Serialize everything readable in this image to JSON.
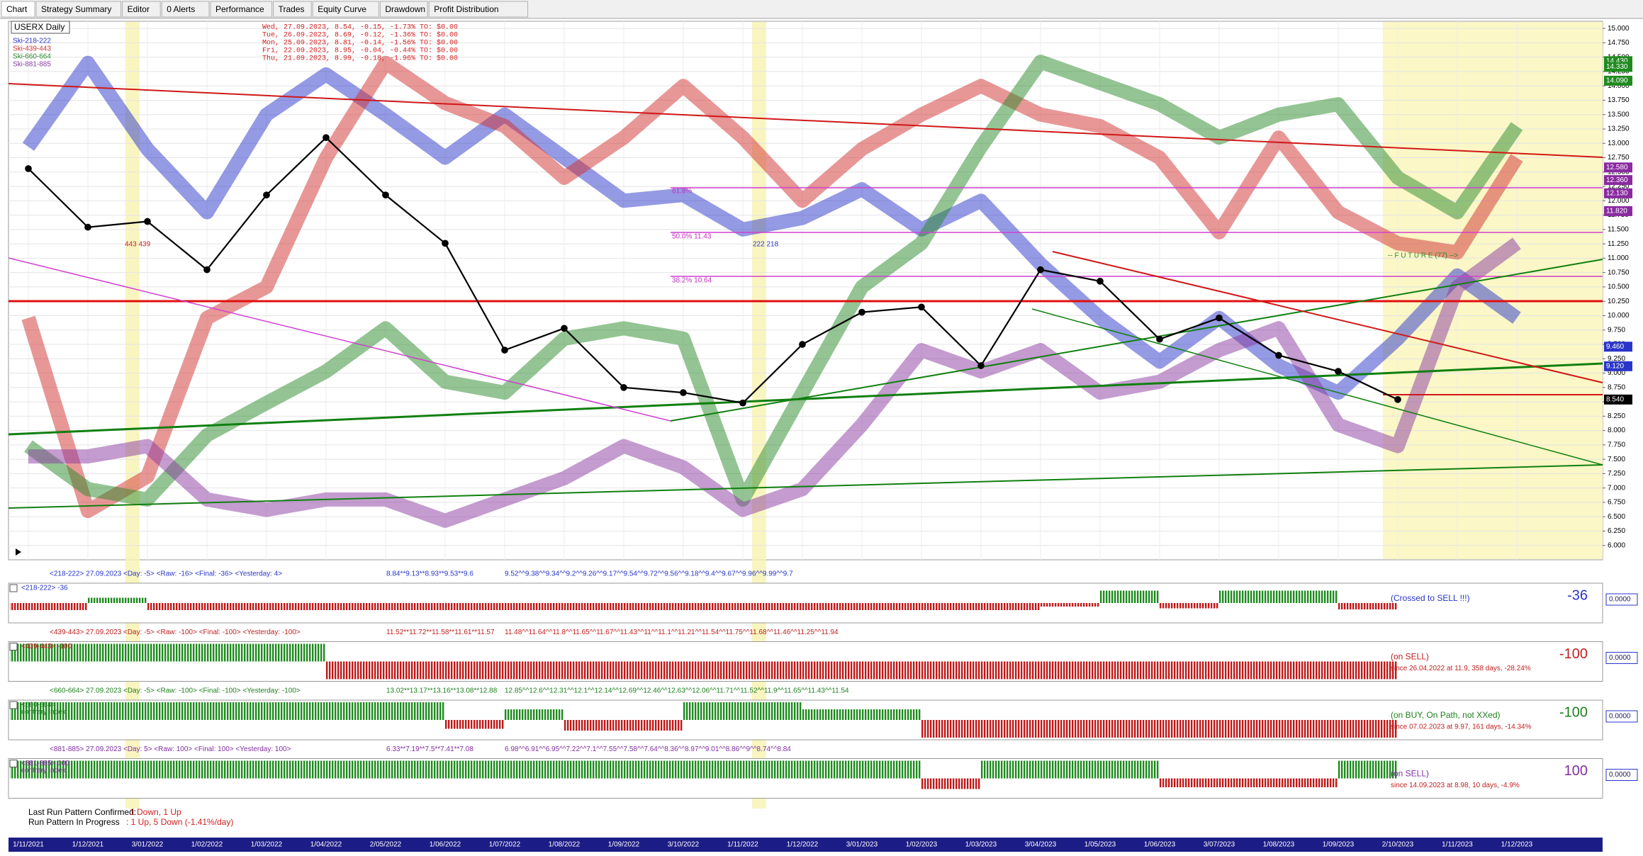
{
  "tabs": [
    "Chart",
    "Strategy Summary",
    "Editor",
    "0 Alerts",
    "Performance",
    "Trades",
    "Equity Curve",
    "Drawdown",
    "Profit Distribution"
  ],
  "chart_data": {
    "type": "line",
    "title": "USERX Daily",
    "x": [
      "1/11/2021",
      "1/12/2021",
      "3/01/2022",
      "1/02/2022",
      "1/03/2022",
      "1/04/2022",
      "2/05/2022",
      "1/06/2022",
      "1/07/2022",
      "1/08/2022",
      "1/09/2022",
      "3/10/2022",
      "1/11/2022",
      "1/12/2022",
      "3/01/2023",
      "1/02/2023",
      "1/03/2023",
      "3/04/2023",
      "1/05/2023",
      "1/06/2023",
      "3/07/2023",
      "1/08/2023",
      "1/09/2023",
      "2/10/2023",
      "1/11/2023",
      "1/12/2023"
    ],
    "ylim": [
      5.75,
      15.125
    ],
    "yticks": [
      {
        "value": 6,
        "label": "6.000"
      },
      {
        "value": 6.25,
        "label": "6.250"
      },
      {
        "value": 6.5,
        "label": "6.500"
      },
      {
        "value": 6.75,
        "label": "6.750"
      },
      {
        "value": 7,
        "label": "7.000"
      },
      {
        "value": 7.25,
        "label": "7.250"
      },
      {
        "value": 7.5,
        "label": "7.500"
      },
      {
        "value": 7.75,
        "label": "7.750"
      },
      {
        "value": 8,
        "label": "8.000"
      },
      {
        "value": 8.25,
        "label": "8.250"
      },
      {
        "value": 8.5,
        "label": "8.500"
      },
      {
        "value": 8.75,
        "label": "8.750"
      },
      {
        "value": 9,
        "label": "9.000"
      },
      {
        "value": 9.25,
        "label": "9.250"
      },
      {
        "value": 9.5,
        "label": "9.500"
      },
      {
        "value": 9.75,
        "label": "9.750"
      },
      {
        "value": 10,
        "label": "10.000"
      },
      {
        "value": 10.25,
        "label": "10.250"
      },
      {
        "value": 10.5,
        "label": "10.500"
      },
      {
        "value": 10.75,
        "label": "10.750"
      },
      {
        "value": 11,
        "label": "11.000"
      },
      {
        "value": 11.25,
        "label": "11.250"
      },
      {
        "value": 11.5,
        "label": "11.500"
      },
      {
        "value": 11.75,
        "label": "11.750"
      },
      {
        "value": 12,
        "label": "12.000"
      },
      {
        "value": 12.25,
        "label": "12.250"
      },
      {
        "value": 12.5,
        "label": "12.500"
      },
      {
        "value": 12.75,
        "label": "12.750"
      },
      {
        "value": 13,
        "label": "13.000"
      },
      {
        "value": 13.25,
        "label": "13.250"
      },
      {
        "value": 13.5,
        "label": "13.500"
      },
      {
        "value": 13.75,
        "label": "13.750"
      },
      {
        "value": 14,
        "label": "14.000"
      },
      {
        "value": 14.25,
        "label": "14.250"
      },
      {
        "value": 14.5,
        "label": "14.500"
      },
      {
        "value": 14.75,
        "label": "14.750"
      },
      {
        "value": 15,
        "label": "15.000"
      }
    ],
    "grid": true,
    "series": [
      {
        "name": "Ski-218-222",
        "color": "#2a36c8",
        "values": [
          12.94,
          14.4,
          12.9,
          11.8,
          13.5,
          14.2,
          13.5,
          12.75,
          13.5,
          12.75,
          12.0,
          12.1,
          11.5,
          11.7,
          12.2,
          11.5,
          12.0,
          10.9,
          9.96,
          9.2,
          9.96,
          9.13,
          8.66,
          9.6,
          10.7,
          9.96
        ]
      },
      {
        "name": "Ski-439-443",
        "color": "#d23030",
        "values": [
          9.96,
          6.6,
          7.2,
          9.96,
          10.5,
          12.75,
          14.4,
          13.7,
          13.3,
          12.4,
          13.1,
          14.0,
          13.1,
          12.0,
          12.9,
          13.5,
          14.0,
          13.5,
          13.3,
          12.75,
          11.45,
          13.1,
          11.8,
          11.26,
          11.1,
          12.75
        ]
      },
      {
        "name": "Ski-660-664",
        "color": "#2a8a2a",
        "values": [
          7.73,
          6.98,
          6.8,
          7.92,
          8.48,
          9.03,
          9.78,
          8.85,
          8.66,
          9.6,
          9.78,
          9.6,
          6.8,
          8.66,
          10.5,
          11.26,
          12.94,
          14.42,
          14.05,
          13.68,
          13.1,
          13.5,
          13.68,
          12.4,
          11.8,
          13.3
        ]
      },
      {
        "name": "Ski-881-885",
        "color": "#8a3aa0",
        "values": [
          7.55,
          7.55,
          7.73,
          6.8,
          6.62,
          6.8,
          6.8,
          6.43,
          6.8,
          7.17,
          7.73,
          7.36,
          6.62,
          6.98,
          8.1,
          9.4,
          9.03,
          9.4,
          8.66,
          8.85,
          9.4,
          9.78,
          8.1,
          7.73,
          10.5,
          11.26
        ]
      },
      {
        "color": "#000000",
        "values": [
          12.56,
          11.54,
          11.64,
          10.8,
          12.1,
          13.1,
          12.1,
          11.26,
          9.4,
          9.78,
          8.75,
          8.66,
          8.48,
          9.5,
          10.06,
          10.15,
          9.13,
          10.8,
          10.6,
          9.59,
          9.96,
          9.31,
          9.03,
          8.54,
          null,
          null
        ]
      }
    ],
    "info_lines": [
      "Wed, 27.09.2023, 8.54, -0.15, -1.73%    TO: $0.00",
      "Tue, 26.09.2023, 8.69, -0.12, -1.36%    TO: $0.00",
      "Mon, 25.09.2023, 8.81, -0.14, -1.56%    TO: $0.00",
      "Fri, 22.09.2023, 8.95, -0.04, -0.44%    TO: $0.00",
      "Thu, 21.09.2023, 8.99, -0.18, -1.96%    TO: $0.00"
    ],
    "info_color": "#d02020",
    "annotations": [
      {
        "text": "443 439",
        "color": "#d02020"
      },
      {
        "text": "222 218",
        "color": "#2a36c8"
      },
      {
        "text": "61.8%",
        "color": "#c030c0"
      },
      {
        "text": "50.0% 11.43",
        "color": "#c030c0"
      },
      {
        "text": "38.2% 10.64",
        "color": "#c030c0"
      },
      {
        "text": "-- F U T U R E (77) -->",
        "color": "#2a8a2a"
      }
    ],
    "price_labels": [
      {
        "value": 14.43,
        "label": "14.430",
        "color": "#1f8a1f"
      },
      {
        "value": 14.33,
        "label": "14.330",
        "color": "#1f8a1f"
      },
      {
        "value": 14.09,
        "label": "14.090",
        "color": "#1f8a1f"
      },
      {
        "value": 12.58,
        "label": "12.580",
        "color": "#8a2aa0"
      },
      {
        "value": 12.36,
        "label": "12.360",
        "color": "#8a2aa0"
      },
      {
        "value": 12.13,
        "label": "12.130",
        "color": "#8a2aa0"
      },
      {
        "value": 11.82,
        "label": "11.820",
        "color": "#8a2aa0"
      },
      {
        "value": 9.46,
        "label": "9.460",
        "color": "#2a36c8"
      },
      {
        "value": 9.12,
        "label": "9.120",
        "color": "#2a36c8"
      },
      {
        "value": 8.54,
        "label": "8.540",
        "color": "#000000"
      }
    ]
  },
  "panels": [
    {
      "header": "<218-222>  27.09.2023  <Day: -5>  <Raw: -16>  <Final: -36>  <Yesterday: 4>",
      "values_recent": "8.84**9.13**8.93**9.53**9.6",
      "values_history": "9.52^^9.38^^9.34^^9.2^^9.26^^9.17^^9.54^^9.72^^9.56^^9.18^^9.4^^9.67^^9.96^^9.99^^9.7",
      "tag": "<218-222>  -36",
      "status": "(Crossed to SELL !!!)",
      "score": "-36",
      "readout": "0.0000",
      "color": "#2a36c8",
      "values": [
        -40,
        -40,
        30,
        -40,
        -40,
        -40,
        -40,
        -40,
        -40,
        -40,
        -40,
        -40,
        -40,
        -40,
        -40,
        -40,
        -40,
        -40,
        -20,
        70,
        -30,
        70,
        70,
        -36,
        null,
        null
      ]
    },
    {
      "header": "<439-443>  27.09.2023  <Day: -5>  <Raw: -100>  <Final: -100>  <Yesterday: -100>",
      "values_recent": "11.52**11.72**11.58**11.61**11.57",
      "values_history": "11.48^^11.64^^11.8^^11.65^^11.67^^11.43^^11^^11.1^^11.21^^11.54^^11.75^^11.68^^11.46^^11.25^^11.94",
      "tag": "<439-443>  -100",
      "status": "(on SELL)",
      "since": "since 26.04.2022 at 11.9, 358 days, -28.24%",
      "score": "-100",
      "readout": "0.0000",
      "color": "#c02020",
      "values": [
        100,
        100,
        100,
        100,
        100,
        100,
        -100,
        -100,
        -100,
        -100,
        -100,
        -100,
        -100,
        -100,
        -100,
        -100,
        -100,
        -100,
        -100,
        -100,
        -100,
        -100,
        -100,
        -100,
        null,
        null
      ]
    },
    {
      "header": "<660-664>  27.09.2023  <Day: -5>  <Raw: -100>  <Final: -100>  <Yesterday: -100>",
      "values_recent": "13.02**13.17**13.16**13.08**12.88",
      "values_history": "12.85^^12.6^^12.31^^12.1^^12.14^^12.69^^12.46^^12.63^^12.06^^11.71^^11.52^^11.9^^11.65^^11.43^^11.54",
      "tag": "<660-664>",
      "tag_sub": "contrary index",
      "status": "(on BUY, On Path, not XXed)",
      "since": "since 07.02.2023 at 9.97, 161 days, -14.34%",
      "score": "-100",
      "readout": "0.0000",
      "color": "#208020",
      "values": [
        100,
        100,
        100,
        100,
        100,
        100,
        100,
        100,
        -50,
        60,
        -60,
        -60,
        100,
        100,
        60,
        60,
        -100,
        -100,
        -100,
        -100,
        -100,
        -100,
        -100,
        -100,
        null,
        null
      ]
    },
    {
      "header": "<881-885>  27.09.2023  <Day: 5>  <Raw: 100>  <Final: 100>  <Yesterday: 100>",
      "values_recent": "6.33**7.19**7.5**7.41**7.08",
      "values_history": "6.98^^6.91^^6.95^^7.22^^7.1^^7.55^^7.58^^7.64^^8.36^^8.97^^9.01^^8.86^^9^^8.74^^8.84",
      "tag": "<881-885>  100",
      "tag_sub": "contrary index",
      "status": "(on SELL)",
      "since": "since 14.09.2023 at 8.98, 10 days, -4.9%",
      "score": "100",
      "readout": "0.0000",
      "color": "#8030a0",
      "values": [
        100,
        100,
        100,
        100,
        100,
        100,
        100,
        100,
        100,
        100,
        100,
        100,
        100,
        100,
        100,
        100,
        -60,
        100,
        100,
        100,
        -50,
        -50,
        -50,
        100,
        null,
        null
      ]
    }
  ],
  "footer": {
    "confirmed_label": "Last Run Pattern Confirmed:",
    "confirmed_value": "1 Down, 1 Up",
    "progress_label": "Run Pattern In Progress",
    "progress_value": ": 1 Up, 5 Down  (-1.41%/day)"
  }
}
